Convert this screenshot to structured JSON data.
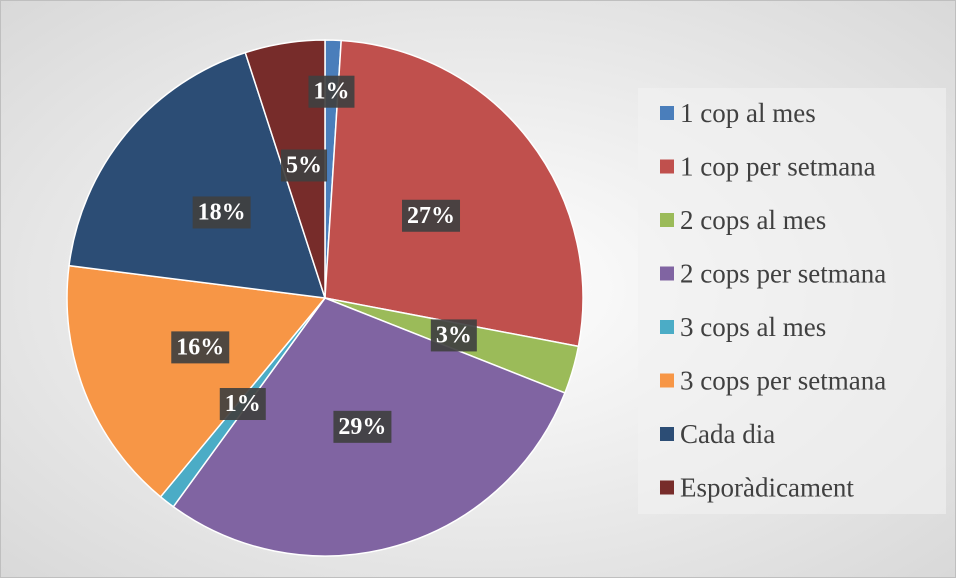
{
  "chart_data": {
    "type": "pie",
    "categories": [
      "1 cop al mes",
      "1 cop per setmana",
      "2 cops al mes",
      "2 cops per setmana",
      "3 cops al mes",
      "3 cops per setmana",
      "Cada dia",
      "Esporàdicament"
    ],
    "values": [
      1,
      27,
      3,
      29,
      1,
      16,
      18,
      5
    ],
    "value_labels": [
      "1%",
      "27%",
      "3%",
      "29%",
      "1%",
      "16%",
      "18%",
      "5%"
    ],
    "colors": [
      "#4a7ebb",
      "#c0504d",
      "#9bbb59",
      "#8064a2",
      "#4bacc6",
      "#f79646",
      "#2c4d75",
      "#772c2a"
    ],
    "legend": "right"
  }
}
